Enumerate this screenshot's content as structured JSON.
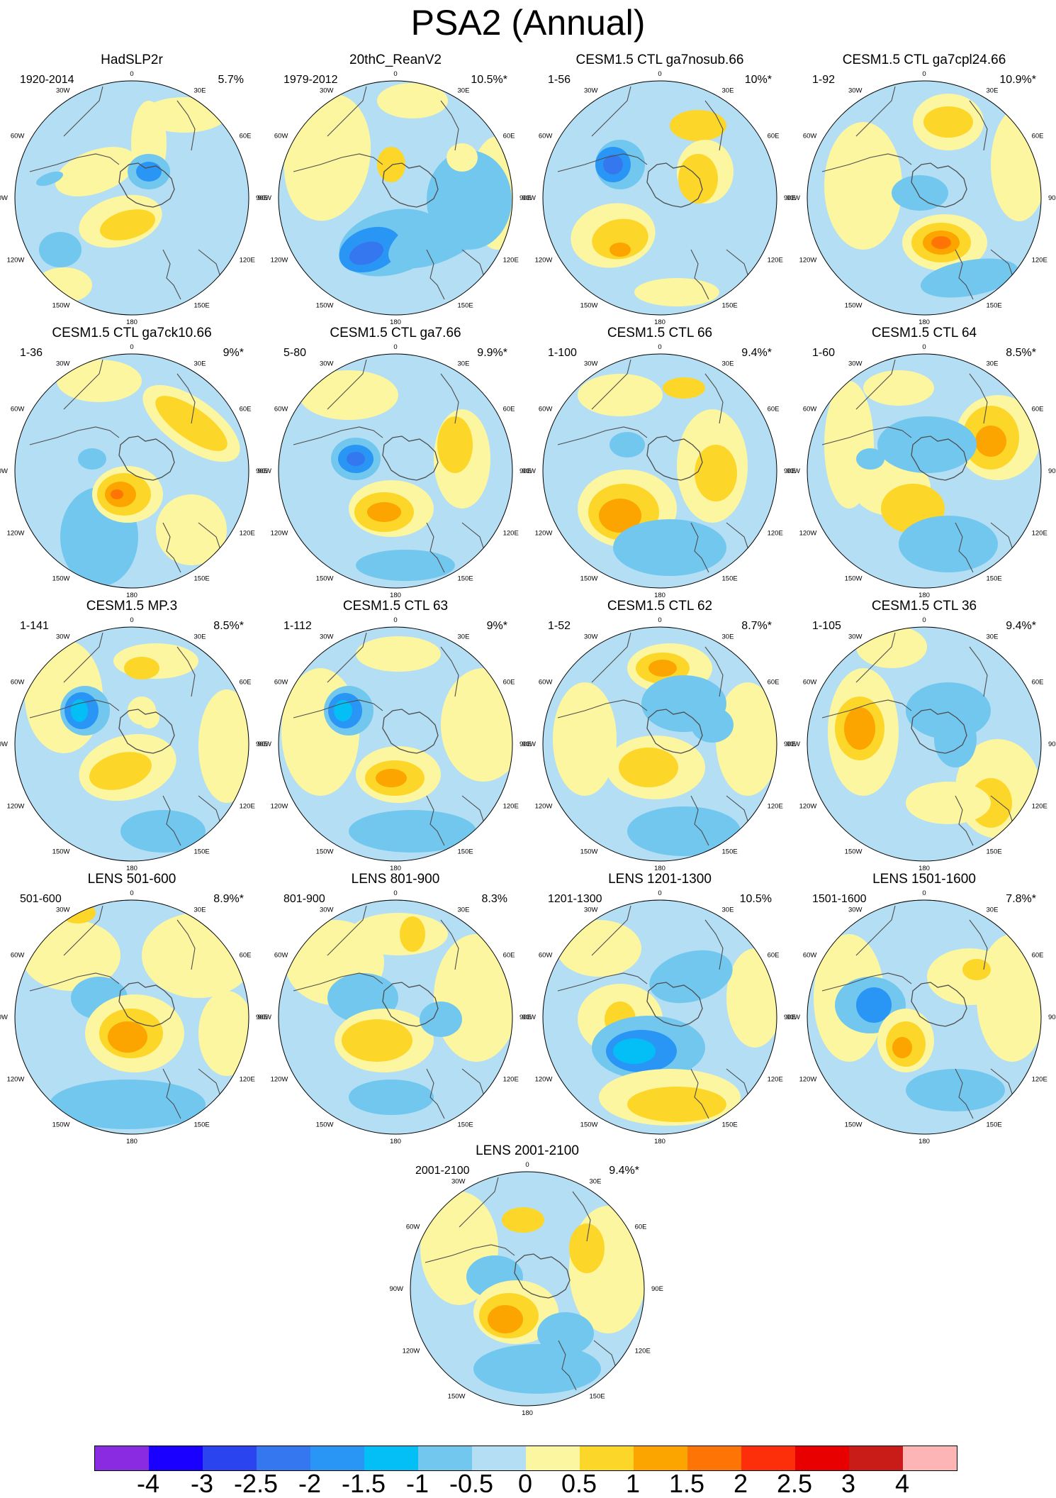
{
  "title": "PSA2 (Annual)",
  "lon_labels": [
    "0",
    "30E",
    "60E",
    "90E",
    "120E",
    "150E",
    "180",
    "150W",
    "120W",
    "90W",
    "60W",
    "30W"
  ],
  "panels": [
    {
      "title": "HadSLP2r",
      "period": "1920-2014",
      "pct": "5.7%",
      "pattern": 0
    },
    {
      "title": "20thC_ReanV2",
      "period": "1979-2012",
      "pct": "10.5%*",
      "pattern": 1
    },
    {
      "title": "CESM1.5 CTL ga7nosub.66",
      "period": "1-56",
      "pct": "10%*",
      "pattern": 2
    },
    {
      "title": "CESM1.5 CTL ga7cpl24.66",
      "period": "1-92",
      "pct": "10.9%*",
      "pattern": 3
    },
    {
      "title": "CESM1.5 CTL ga7ck10.66",
      "period": "1-36",
      "pct": "9%*",
      "pattern": 4
    },
    {
      "title": "CESM1.5 CTL ga7.66",
      "period": "5-80",
      "pct": "9.9%*",
      "pattern": 5
    },
    {
      "title": "CESM1.5 CTL 66",
      "period": "1-100",
      "pct": "9.4%*",
      "pattern": 6
    },
    {
      "title": "CESM1.5 CTL 64",
      "period": "1-60",
      "pct": "8.5%*",
      "pattern": 7
    },
    {
      "title": "CESM1.5 MP.3",
      "period": "1-141",
      "pct": "8.5%*",
      "pattern": 8
    },
    {
      "title": "CESM1.5 CTL 63",
      "period": "1-112",
      "pct": "9%*",
      "pattern": 9
    },
    {
      "title": "CESM1.5 CTL 62",
      "period": "1-52",
      "pct": "8.7%*",
      "pattern": 10
    },
    {
      "title": "CESM1.5 CTL 36",
      "period": "1-105",
      "pct": "9.4%*",
      "pattern": 11
    },
    {
      "title": "LENS 501-600",
      "period": "501-600",
      "pct": "8.9%*",
      "pattern": 12
    },
    {
      "title": "LENS 801-900",
      "period": "801-900",
      "pct": "8.3%",
      "pattern": 13
    },
    {
      "title": "LENS 1201-1300",
      "period": "1201-1300",
      "pct": "10.5%",
      "pattern": 14
    },
    {
      "title": "LENS 1501-1600",
      "period": "1501-1600",
      "pct": "7.8%*",
      "pattern": 15
    },
    {
      "title": "LENS 2001-2100",
      "period": "2001-2100",
      "pct": "9.4%*",
      "pattern": 16
    }
  ],
  "colorbar": {
    "labels": [
      "-4",
      "-3",
      "-2.5",
      "-2",
      "-1.5",
      "-1",
      "-0.5",
      "0",
      "0.5",
      "1",
      "1.5",
      "2",
      "2.5",
      "3",
      "4"
    ],
    "colors": [
      "#8a2be2",
      "#1a00ff",
      "#2a44f0",
      "#3577ee",
      "#2996f5",
      "#04bff6",
      "#72c7ef",
      "#b3def3",
      "#fdf6a0",
      "#fdd62a",
      "#fca400",
      "#fe7505",
      "#fd2f0a",
      "#e80000",
      "#c91b17",
      "#fdb5b5"
    ]
  },
  "fill_colors": {
    "background": "#b3def3",
    "pos1": "#fdf6a0",
    "pos2": "#fdd62a",
    "pos3": "#fca400",
    "pos4": "#fe7505",
    "neg1": "#72c7ef",
    "neg2": "#2996f5",
    "neg3": "#04bff6",
    "neg4": "#3577ee",
    "coast": "#4d4d4d"
  }
}
